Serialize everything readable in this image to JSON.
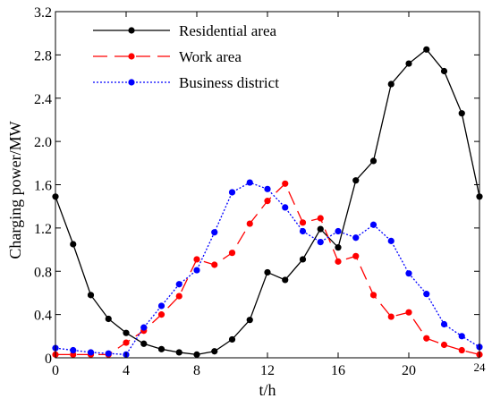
{
  "chart_data": {
    "type": "line",
    "title": "",
    "xlabel": "t/h",
    "ylabel": "Charging power/MW",
    "xlim": [
      0,
      24
    ],
    "ylim": [
      0,
      3.2
    ],
    "x_ticks": [
      "0",
      "4",
      "8",
      "12",
      "16",
      "20",
      "24"
    ],
    "y_ticks": [
      "0",
      "0.4",
      "0.8",
      "1.2",
      "1.6",
      "2.0",
      "2.4",
      "2.8",
      "3.2"
    ],
    "grid": false,
    "legend_position": "top-left",
    "x": [
      0,
      1,
      2,
      3,
      4,
      5,
      6,
      7,
      8,
      9,
      10,
      11,
      12,
      13,
      14,
      15,
      16,
      17,
      18,
      19,
      20,
      21,
      22,
      23,
      24
    ],
    "series": [
      {
        "name": "Residential area",
        "color": "#000000",
        "line_style": "solid",
        "values": [
          1.49,
          1.05,
          0.58,
          0.36,
          0.23,
          0.13,
          0.08,
          0.05,
          0.03,
          0.06,
          0.17,
          0.35,
          0.79,
          0.72,
          0.91,
          1.19,
          1.02,
          1.64,
          1.82,
          2.53,
          2.72,
          2.85,
          2.65,
          2.26,
          1.49
        ]
      },
      {
        "name": "Work area",
        "color": "#ff0000",
        "line_style": "dashed",
        "values": [
          0.03,
          0.03,
          0.03,
          0.03,
          0.14,
          0.25,
          0.4,
          0.57,
          0.91,
          0.86,
          0.97,
          1.24,
          1.45,
          1.61,
          1.25,
          1.29,
          0.89,
          0.94,
          0.58,
          0.38,
          0.42,
          0.18,
          0.12,
          0.07,
          0.03
        ]
      },
      {
        "name": "Business district",
        "color": "#0000ff",
        "line_style": "dotted",
        "values": [
          0.09,
          0.07,
          0.05,
          0.04,
          0.03,
          0.28,
          0.48,
          0.68,
          0.81,
          1.16,
          1.53,
          1.62,
          1.56,
          1.39,
          1.17,
          1.07,
          1.17,
          1.11,
          1.23,
          1.08,
          0.78,
          0.59,
          0.31,
          0.2,
          0.1
        ]
      }
    ]
  }
}
